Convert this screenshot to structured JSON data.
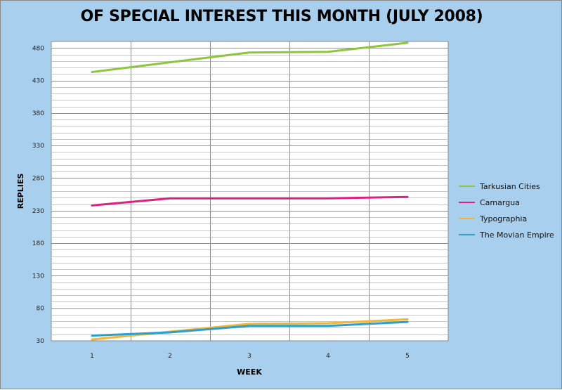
{
  "chart_data": {
    "type": "line",
    "title": "OF SPECIAL INTEREST THIS MONTH (JULY 2008)",
    "xlabel": "WEEK",
    "ylabel": "REPLIES",
    "x": [
      1,
      2,
      3,
      4,
      5
    ],
    "x_tick_labels": [
      "1",
      "2",
      "3",
      "4",
      "5"
    ],
    "y_tick_labels": [
      "30",
      "80",
      "130",
      "180",
      "230",
      "280",
      "330",
      "380",
      "430",
      "480"
    ],
    "ylim": [
      30,
      490
    ],
    "y_major_step": 50,
    "y_minor_step": 10,
    "grid": true,
    "legend_position": "right",
    "series": [
      {
        "name": "Tarkusian Cities",
        "color": "#8cc63f",
        "values": [
          443,
          458,
          473,
          474,
          488
        ]
      },
      {
        "name": "Camargua",
        "color": "#d9237f",
        "values": [
          238,
          249,
          249,
          249,
          251
        ]
      },
      {
        "name": "Typographia",
        "color": "#f2b632",
        "values": [
          32,
          44,
          56,
          57,
          63
        ]
      },
      {
        "name": "The Movian Empire",
        "color": "#2a9fd0",
        "values": [
          38,
          43,
          53,
          53,
          59
        ]
      }
    ]
  }
}
